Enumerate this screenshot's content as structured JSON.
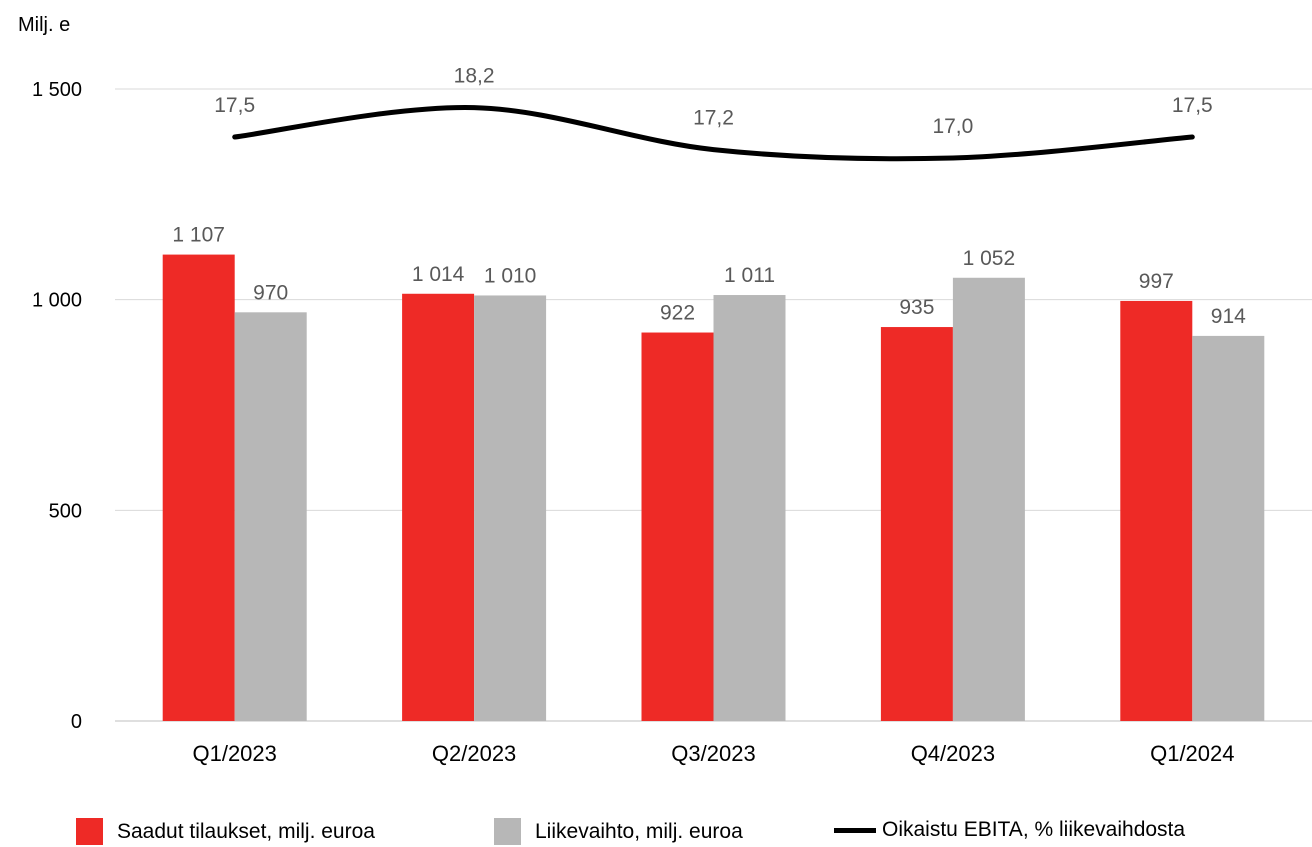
{
  "chart_data": {
    "type": "bar",
    "ylabel": "Milj. e",
    "ylim": [
      0,
      1500
    ],
    "yticks": [
      0,
      500,
      1000,
      1500
    ],
    "ytick_labels": [
      "0",
      "500",
      "1 000",
      "1 500"
    ],
    "grid": true,
    "legend_position": "bottom",
    "categories": [
      "Q1/2023",
      "Q2/2023",
      "Q3/2023",
      "Q4/2023",
      "Q1/2024"
    ],
    "series": [
      {
        "name": "Saadut tilaukset, milj. euroa",
        "type": "bar",
        "color": "#ee2a26",
        "values": [
          1107,
          1014,
          922,
          935,
          997
        ],
        "labels": [
          "1 107",
          "1 014",
          "922",
          "935",
          "997"
        ]
      },
      {
        "name": "Liikevaihto, milj. euroa",
        "type": "bar",
        "color": "#b7b7b7",
        "values": [
          970,
          1010,
          1011,
          1052,
          914
        ],
        "labels": [
          "970",
          "1 010",
          "1 011",
          "1 052",
          "914"
        ]
      },
      {
        "name": "Oikaistu EBITA, % liikevaihdosta",
        "type": "line",
        "color": "#000000",
        "smooth": true,
        "secondary_axis": true,
        "values": [
          17.5,
          18.2,
          17.2,
          17.0,
          17.5
        ],
        "labels": [
          "17,5",
          "18,2",
          "17,2",
          "17,0",
          "17,5"
        ]
      }
    ]
  }
}
